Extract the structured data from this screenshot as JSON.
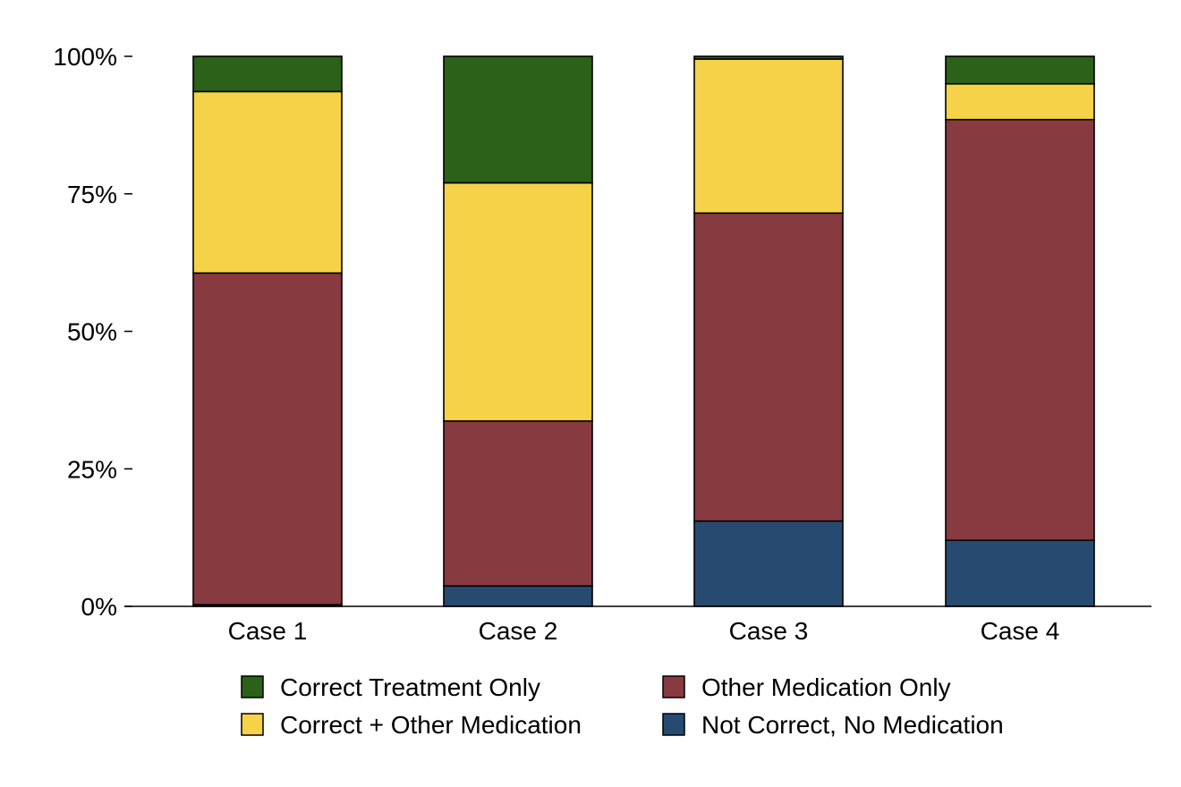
{
  "chart_data": {
    "type": "bar",
    "stacked": true,
    "categories": [
      "Case 1",
      "Case 2",
      "Case 3",
      "Case 4"
    ],
    "series": [
      {
        "name": "Not Correct, No Medication",
        "color": "#274b70",
        "values": [
          0.3,
          3.7,
          15.5,
          12.0
        ]
      },
      {
        "name": "Other Medication Only",
        "color": "#873a3f",
        "values": [
          60.3,
          30.0,
          56.0,
          76.5
        ]
      },
      {
        "name": "Correct + Other Medication",
        "color": "#f5d247",
        "values": [
          33.0,
          43.3,
          28.0,
          6.5
        ]
      },
      {
        "name": "Correct Treatment Only",
        "color": "#2b6118",
        "values": [
          6.4,
          23.0,
          0.5,
          5.0
        ]
      }
    ],
    "yticks": [
      "0%",
      "25%",
      "50%",
      "75%",
      "100%"
    ],
    "ylim": [
      0,
      100
    ],
    "grid": false,
    "legend_position": "bottom",
    "legend_order": [
      "Correct Treatment Only",
      "Other Medication Only",
      "Correct + Other Medication",
      "Not Correct, No Medication"
    ]
  }
}
